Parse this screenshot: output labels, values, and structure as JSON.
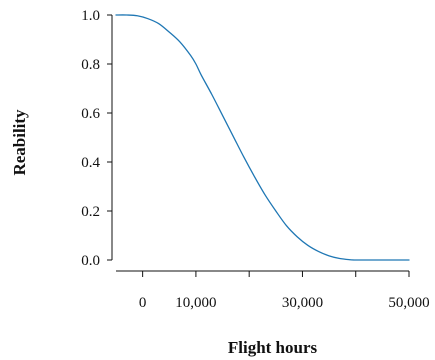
{
  "chart_data": {
    "type": "line",
    "title": "",
    "xlabel": "Flight hours",
    "ylabel": "Reability",
    "xlim": [
      -5000,
      50000
    ],
    "ylim": [
      0,
      1
    ],
    "x_ticks": [
      {
        "value": 0,
        "label": "0"
      },
      {
        "value": 10000,
        "label": "10,000"
      },
      {
        "value": 20000,
        "label": ""
      },
      {
        "value": 30000,
        "label": "30,000"
      },
      {
        "value": 40000,
        "label": ""
      },
      {
        "value": 50000,
        "label": "50,000"
      }
    ],
    "y_ticks": [
      {
        "value": 0.0,
        "label": "0.0"
      },
      {
        "value": 0.2,
        "label": "0.2"
      },
      {
        "value": 0.4,
        "label": "0.4"
      },
      {
        "value": 0.6,
        "label": "0.6"
      },
      {
        "value": 0.8,
        "label": "0.8"
      },
      {
        "value": 1.0,
        "label": "1.0"
      }
    ],
    "grid": false,
    "series": [
      {
        "color": "#1f77b4",
        "x": [
          -5000,
          -3000,
          -1000,
          1000,
          3000,
          5000,
          7000,
          9000,
          10000,
          11000,
          13000,
          15000,
          17000,
          19000,
          21000,
          23000,
          25000,
          27000,
          29000,
          31000,
          33000,
          35000,
          37000,
          39000,
          40000,
          45000,
          50000
        ],
        "y": [
          1.0,
          1.0,
          0.997,
          0.985,
          0.965,
          0.93,
          0.89,
          0.835,
          0.8,
          0.755,
          0.675,
          0.59,
          0.505,
          0.42,
          0.34,
          0.265,
          0.2,
          0.14,
          0.095,
          0.06,
          0.035,
          0.017,
          0.006,
          0.001,
          0.0,
          0.0,
          0.0
        ]
      }
    ]
  }
}
